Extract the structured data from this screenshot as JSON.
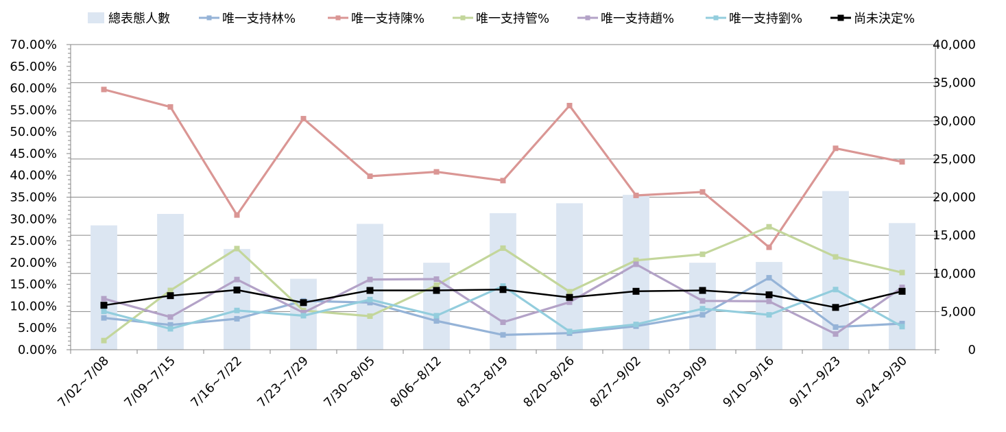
{
  "chart_data": {
    "type": "bar+line",
    "categories": [
      "7/02~7/08",
      "7/09~7/15",
      "7/16~7/22",
      "7/23~7/29",
      "7/30~8/05",
      "8/06~8/12",
      "8/13~8/19",
      "8/20~8/26",
      "8/27~9/02",
      "9/03~9/09",
      "9/10~9/16",
      "9/17~9/23",
      "9/24~9/30"
    ],
    "left_axis": {
      "min": 0,
      "max": 0.7,
      "step": 0.05,
      "tick_labels": [
        "0.00%",
        "5.00%",
        "10.00%",
        "15.00%",
        "20.00%",
        "25.00%",
        "30.00%",
        "35.00%",
        "40.00%",
        "45.00%",
        "50.00%",
        "55.00%",
        "60.00%",
        "65.00%",
        "70.00%"
      ]
    },
    "right_axis": {
      "min": 0,
      "max": 40000,
      "step": 5000,
      "tick_labels": [
        "0",
        "5,000",
        "10,000",
        "15,000",
        "20,000",
        "25,000",
        "30,000",
        "35,000",
        "40,000"
      ]
    },
    "bar_series": {
      "name": "總表態人數",
      "color": "#dce6f2",
      "values": [
        16300,
        17800,
        13200,
        9300,
        16500,
        11400,
        17900,
        19200,
        20300,
        11400,
        11500,
        20800,
        16600
      ]
    },
    "series": [
      {
        "name": "唯一支持林%",
        "color": "#95b3d7",
        "values": [
          0.073,
          0.057,
          0.071,
          0.112,
          0.108,
          0.066,
          0.034,
          0.038,
          0.054,
          0.08,
          0.165,
          0.052,
          0.06
        ]
      },
      {
        "name": "唯一支持陳%",
        "color": "#da9694",
        "values": [
          0.597,
          0.557,
          0.309,
          0.53,
          0.398,
          0.408,
          0.388,
          0.56,
          0.354,
          0.362,
          0.235,
          0.462,
          0.431
        ]
      },
      {
        "name": "唯一支持管%",
        "color": "#c3d69b",
        "values": [
          0.021,
          0.136,
          0.232,
          0.09,
          0.077,
          0.148,
          0.233,
          0.133,
          0.205,
          0.219,
          0.282,
          0.213,
          0.177
        ]
      },
      {
        "name": "唯一支持趙%",
        "color": "#b3a2c7",
        "values": [
          0.117,
          0.075,
          0.161,
          0.085,
          0.161,
          0.162,
          0.063,
          0.109,
          0.196,
          0.112,
          0.111,
          0.036,
          0.143
        ]
      },
      {
        "name": "唯一支持劉%",
        "color": "#93cddd",
        "values": [
          0.088,
          0.048,
          0.09,
          0.078,
          0.115,
          0.078,
          0.146,
          0.042,
          0.058,
          0.094,
          0.08,
          0.138,
          0.053
        ]
      },
      {
        "name": "尚未決定%",
        "color": "#000000",
        "values": [
          0.102,
          0.124,
          0.137,
          0.108,
          0.136,
          0.136,
          0.138,
          0.12,
          0.134,
          0.136,
          0.126,
          0.097,
          0.134
        ]
      }
    ],
    "grid": true,
    "legend_position": "top"
  }
}
